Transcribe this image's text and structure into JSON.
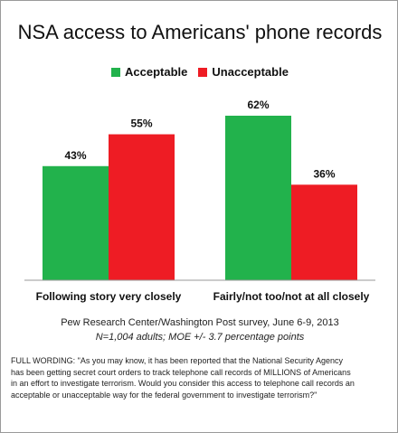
{
  "title": "NSA access to Americans' phone records",
  "source_line": "Pew Research Center/Washington Post survey, June 6-9, 2013",
  "sample_line": "N=1,004 adults; MOE  +/- 3.7 percentage points",
  "wording_lines": [
    "FULL WORDING: \"As you may know, it has been reported that the National Security Agency",
    "has been getting  secret court orders to track telephone call records of MILLIONS of Americans",
    "in an effort to  investigate terrorism. Would you consider this access to telephone call records an",
    "acceptable or unacceptable way for the federal government to investigate terrorism?\""
  ],
  "chart_data": {
    "type": "bar",
    "title": "NSA access to Americans' phone records",
    "categories": [
      "Following story very closely",
      "Fairly/not too/not at all closely"
    ],
    "series": [
      {
        "name": "Acceptable",
        "color": "#22b24c",
        "values": [
          43,
          62
        ],
        "labels": [
          "43%",
          "62%"
        ]
      },
      {
        "name": "Unacceptable",
        "color": "#ee1c24",
        "values": [
          55,
          36
        ],
        "labels": [
          "55%",
          "36%"
        ]
      }
    ],
    "ylim": [
      0,
      62
    ],
    "legend": "top",
    "grid": false
  }
}
